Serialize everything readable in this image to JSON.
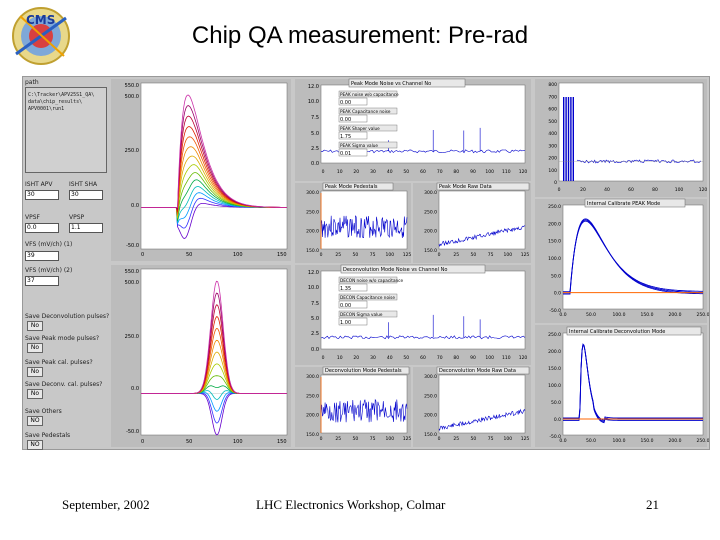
{
  "slide": {
    "title": "Chip QA measurement: Pre-rad",
    "footer_left": "September, 2002",
    "footer_center": "LHC Electronics Workshop, Colmar",
    "footer_right": "21"
  },
  "logo": {
    "text": "CMS"
  },
  "controls": {
    "path_label": "path",
    "path_lines": [
      "C:\\Tracker\\APV25S1_QA\\",
      "data\\chip_results\\",
      "APV0001\\run1"
    ],
    "isht_apv_label": "ISHT APV",
    "isht_apv_value": "30",
    "isht_sha_label": "ISHT SHA",
    "isht_sha_value": "30",
    "vpsf_label": "VPSF",
    "vpsf_value": "0.0",
    "vpsp_label": "VPSP",
    "vpsp_value": "1.1",
    "vfs_label": "VFS (mV/ch) (1)",
    "vfs_value": "39",
    "vfs2_label": "VFS (mV/ch) (2)",
    "vfs2_value": "37",
    "save_deconv_label": "Save Deconvolution pulses?",
    "save_deconv_value": "No",
    "save_peak_label": "Save Peak mode pulses?",
    "save_peak_value": "No",
    "save_peak2_label": "Save Peak cal. pulses?",
    "save_peak2_value": "No",
    "save_deconv2_label": "Save Deconv. cal. pulses?",
    "save_deconv2_value": "No",
    "save_others_label": "Save Others",
    "save_others_value": "NO",
    "save_pedestals_label": "Save Pedestals",
    "save_pedestals_value": "NO"
  },
  "panels": {
    "peak_noise_title": "Peak Mode Noise vs Channel No",
    "peak_noise_fields": [
      {
        "label": "PEAK noise w/o capacitance",
        "value": "0.00"
      },
      {
        "label": "PEAK Capacitance noise",
        "value": "0.00"
      },
      {
        "label": "PEAK Shaper value",
        "value": "1.75"
      },
      {
        "label": "PEAK Sigma value",
        "value": "0.01"
      }
    ],
    "peak_ped_title": "Peak Mode Pedestals",
    "peak_raw_title": "Peak Mode Raw Data",
    "deconv_noise_title": "Deconvolution Mode Noise vs Channel No",
    "deconv_noise_fields": [
      {
        "label": "DECON noise w/o capacitance",
        "value": "1.35"
      },
      {
        "label": "DECON Capacitance noise",
        "value": "0.00"
      },
      {
        "label": "DECON Sigma value",
        "value": "1.00"
      }
    ],
    "deconv_ped_title": "Deconvolution Mode Pedestals",
    "deconv_raw_title": "Deconvolution Mode Raw Data",
    "int_cal_peak_title": "Internal Calibrate PEAK Mode",
    "int_cal_deconv_title": "Internal Calibrate Deconvolution Mode"
  },
  "axes": {
    "shape_top_y": [
      "550.0",
      "500.0",
      "250.0",
      "0.0",
      "-50.0"
    ],
    "shape_x": [
      "0",
      "50",
      "100",
      "150"
    ],
    "shape_bot_y": [
      "550.0",
      "500.0",
      "250.0",
      "0.0",
      "-50.0"
    ],
    "noise_y": [
      "12.0",
      "10.0",
      "7.5",
      "5.0",
      "2.5",
      "0.0"
    ],
    "noise_x": [
      "0",
      "10",
      "20",
      "30",
      "40",
      "50",
      "60",
      "70",
      "80",
      "90",
      "100",
      "110",
      "120"
    ],
    "ped_y": [
      "300.0",
      "250.0",
      "200.0",
      "150.0"
    ],
    "ped_x": [
      "0",
      "25",
      "50",
      "75",
      "100",
      "125"
    ],
    "raw_y": [
      "300.0",
      "250.0",
      "200.0",
      "150.0"
    ],
    "raw_x": [
      "0",
      "25",
      "50",
      "75",
      "100",
      "125"
    ],
    "right_top_y": [
      "800",
      "700",
      "600",
      "500",
      "400",
      "300",
      "200",
      "100",
      "0"
    ],
    "right_top_x": [
      "0",
      "20",
      "40",
      "60",
      "80",
      "100",
      "120"
    ],
    "cal_y": [
      "250.0",
      "200.0",
      "150.0",
      "100.0",
      "50.0",
      "0.0",
      "-50.0"
    ],
    "cal_x": [
      "0.0",
      "50.0",
      "100.0",
      "150.0",
      "200.0",
      "250.0"
    ]
  },
  "colors": {
    "screen_bg": "#c8c8c8",
    "plot_bg": "#ffffff",
    "trace_blue": "#0000cc",
    "trace_orange": "#ff6600"
  }
}
